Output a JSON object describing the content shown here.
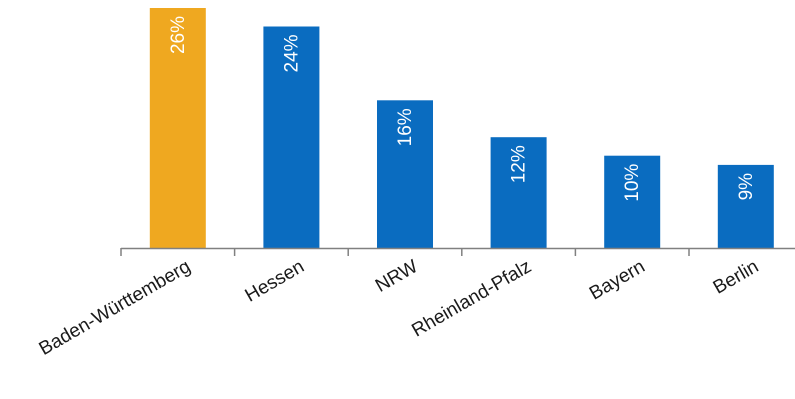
{
  "chart_data": {
    "type": "bar",
    "categories": [
      "Baden-Württemberg",
      "Hessen",
      "NRW",
      "Rheinland-Pfalz",
      "Bayern",
      "Berlin"
    ],
    "values": [
      26,
      24,
      16,
      12,
      10,
      9
    ],
    "data_labels": [
      "26%",
      "24%",
      "16%",
      "12%",
      "10%",
      "9%"
    ],
    "unit": "%",
    "title": "",
    "xlabel": "",
    "ylabel": "",
    "ylim": [
      0,
      26
    ],
    "grid": false,
    "legend": "none",
    "colors": {
      "highlight": "#EFA820",
      "default": "#0A6CC0",
      "axis": "#808080"
    },
    "highlight_index": 0
  }
}
